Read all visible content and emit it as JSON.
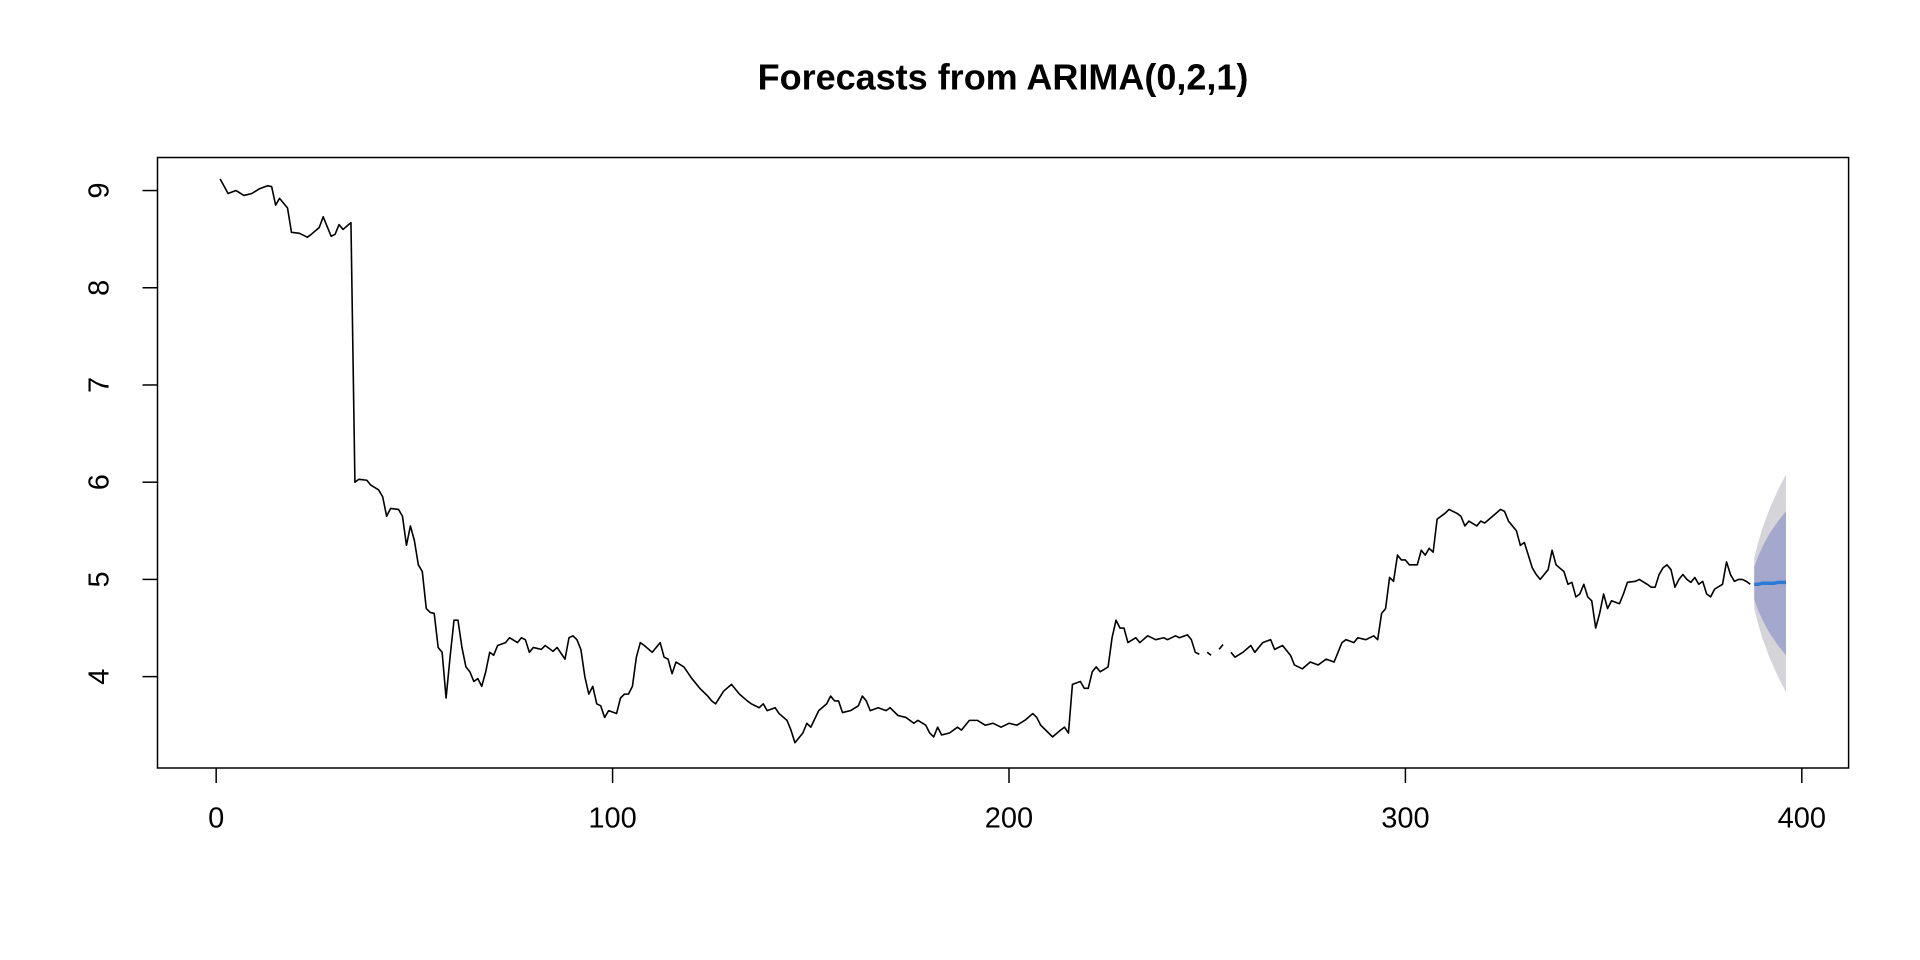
{
  "chart_data": {
    "type": "line",
    "title": "Forecasts from ARIMA(0,2,1)",
    "x": [
      1,
      3,
      5,
      7,
      9,
      11,
      13,
      14,
      15,
      16,
      18,
      19,
      21,
      23,
      24,
      26,
      27,
      29,
      30,
      31,
      32,
      34,
      35,
      36,
      38,
      39,
      41,
      42,
      43,
      44,
      46,
      47,
      48,
      49,
      50,
      51,
      52,
      53,
      54,
      55,
      56,
      57,
      58,
      59,
      60,
      61,
      62,
      63,
      64,
      65,
      66,
      67,
      68,
      69,
      70,
      71,
      73,
      74,
      76,
      77,
      78,
      79,
      80,
      82,
      83,
      85,
      86,
      88,
      89,
      90,
      91,
      92,
      93,
      94,
      95,
      96,
      97,
      98,
      99,
      101,
      102,
      103,
      104,
      105,
      106,
      107,
      108,
      110,
      112,
      113,
      114,
      115,
      116,
      118,
      120,
      122,
      124,
      125,
      126,
      128,
      130,
      132,
      134,
      135,
      137,
      138,
      139,
      141,
      142,
      144,
      145,
      146,
      148,
      149,
      150,
      152,
      154,
      155,
      156,
      157,
      158,
      160,
      162,
      163,
      164,
      165,
      167,
      169,
      170,
      172,
      174,
      176,
      177,
      179,
      180,
      181,
      182,
      183,
      185,
      187,
      188,
      190,
      192,
      194,
      196,
      198,
      200,
      202,
      204,
      206,
      207,
      208,
      210,
      211,
      213,
      214,
      215,
      216,
      218,
      219,
      220,
      221,
      222,
      223,
      225,
      226,
      227,
      228,
      229,
      230,
      232,
      233,
      235,
      237,
      239,
      240,
      242,
      243,
      245,
      246,
      247,
      248,
      249,
      250,
      251,
      252,
      253,
      254,
      255,
      256,
      257,
      259,
      261,
      262,
      264,
      266,
      267,
      269,
      271,
      272,
      274,
      276,
      278,
      280,
      282,
      284,
      285,
      287,
      288,
      290,
      292,
      293,
      294,
      295,
      296,
      297,
      298,
      299,
      300,
      301,
      303,
      304,
      305,
      306,
      307,
      308,
      310,
      311,
      313,
      314,
      315,
      316,
      318,
      319,
      320,
      322,
      324,
      325,
      326,
      327,
      328,
      329,
      330,
      332,
      333,
      334,
      335,
      336,
      337,
      338,
      340,
      341,
      342,
      343,
      344,
      345,
      346,
      347,
      348,
      349,
      350,
      351,
      352,
      354,
      355,
      356,
      358,
      359,
      361,
      362,
      363,
      364,
      365,
      366,
      367,
      368,
      369,
      370,
      371,
      372,
      373,
      374,
      375,
      376,
      377,
      378,
      380,
      381,
      382,
      383,
      384,
      385,
      386,
      387
    ],
    "series": [
      {
        "color": "#000000",
        "values": [
          9.12,
          8.97,
          9.0,
          8.95,
          8.97,
          9.02,
          9.05,
          9.04,
          8.85,
          8.92,
          8.82,
          8.57,
          8.56,
          8.52,
          8.55,
          8.62,
          8.73,
          8.53,
          8.55,
          8.65,
          8.6,
          8.67,
          6.0,
          6.03,
          6.02,
          5.97,
          5.92,
          5.85,
          5.65,
          5.73,
          5.72,
          5.65,
          5.35,
          5.55,
          5.4,
          5.15,
          5.08,
          4.7,
          4.66,
          4.65,
          4.3,
          4.25,
          3.78,
          4.2,
          4.58,
          4.58,
          4.3,
          4.1,
          4.05,
          3.95,
          3.98,
          3.9,
          4.05,
          4.25,
          4.22,
          4.32,
          4.35,
          4.4,
          4.35,
          4.4,
          4.38,
          4.25,
          4.3,
          4.28,
          4.32,
          4.26,
          4.3,
          4.18,
          4.4,
          4.42,
          4.38,
          4.28,
          4.0,
          3.82,
          3.9,
          3.72,
          3.7,
          3.58,
          3.65,
          3.62,
          3.78,
          3.82,
          3.82,
          3.9,
          4.2,
          4.35,
          4.32,
          4.25,
          4.35,
          4.2,
          4.18,
          4.03,
          4.15,
          4.1,
          3.98,
          3.88,
          3.8,
          3.75,
          3.72,
          3.85,
          3.92,
          3.82,
          3.75,
          3.72,
          3.68,
          3.72,
          3.65,
          3.68,
          3.62,
          3.55,
          3.45,
          3.32,
          3.42,
          3.52,
          3.48,
          3.65,
          3.72,
          3.8,
          3.75,
          3.75,
          3.63,
          3.65,
          3.7,
          3.8,
          3.75,
          3.65,
          3.68,
          3.65,
          3.68,
          3.6,
          3.58,
          3.52,
          3.55,
          3.5,
          3.42,
          3.38,
          3.48,
          3.4,
          3.42,
          3.48,
          3.45,
          3.55,
          3.55,
          3.5,
          3.52,
          3.48,
          3.52,
          3.5,
          3.55,
          3.62,
          3.58,
          3.5,
          3.42,
          3.38,
          3.45,
          3.48,
          3.42,
          3.92,
          3.95,
          3.88,
          3.88,
          4.05,
          4.1,
          4.05,
          4.1,
          4.4,
          4.58,
          4.5,
          4.5,
          4.35,
          4.4,
          4.35,
          4.42,
          4.38,
          4.4,
          4.38,
          4.42,
          4.4,
          4.43,
          4.38,
          4.25,
          4.23,
          null,
          4.25,
          4.22,
          null,
          4.28,
          4.33,
          null,
          4.25,
          4.2,
          4.25,
          4.32,
          4.25,
          4.35,
          4.38,
          4.28,
          4.32,
          4.22,
          4.12,
          4.08,
          4.15,
          4.12,
          4.18,
          4.15,
          4.35,
          4.38,
          4.35,
          4.4,
          4.38,
          4.42,
          4.38,
          4.65,
          4.7,
          5.02,
          4.98,
          5.25,
          5.2,
          5.2,
          5.15,
          5.15,
          5.3,
          5.25,
          5.32,
          5.28,
          5.62,
          5.68,
          5.72,
          5.68,
          5.65,
          5.55,
          5.6,
          5.55,
          5.6,
          5.58,
          5.65,
          5.72,
          5.7,
          5.6,
          5.55,
          5.5,
          5.35,
          5.38,
          5.12,
          5.05,
          5.0,
          5.05,
          5.1,
          5.3,
          5.15,
          5.08,
          4.95,
          4.97,
          4.82,
          4.85,
          4.95,
          4.82,
          4.78,
          4.5,
          4.65,
          4.85,
          4.7,
          4.78,
          4.75,
          4.85,
          4.97,
          4.98,
          5.0,
          4.95,
          4.92,
          4.92,
          5.05,
          5.12,
          5.15,
          5.1,
          4.92,
          5.0,
          5.05,
          5.0,
          4.97,
          5.02,
          4.95,
          4.98,
          4.85,
          4.82,
          4.9,
          4.95,
          5.18,
          5.05,
          4.98,
          5.0,
          5.0,
          4.98,
          4.95
        ]
      }
    ],
    "forecast": {
      "x": [
        388,
        389,
        390,
        391,
        392,
        393,
        394,
        395,
        396
      ],
      "color": "#2b7bd6",
      "mean": [
        4.95,
        4.95,
        4.96,
        4.96,
        4.96,
        4.96,
        4.97,
        4.97,
        4.97
      ],
      "intervals": [
        {
          "color": "#d4d4d9",
          "lower": [
            4.7,
            4.54,
            4.4,
            4.29,
            4.18,
            4.09,
            4.0,
            3.92,
            3.84
          ],
          "upper": [
            5.22,
            5.38,
            5.52,
            5.63,
            5.74,
            5.83,
            5.92,
            6.0,
            6.08
          ]
        },
        {
          "color": "#a4a8cd",
          "lower": [
            4.79,
            4.68,
            4.59,
            4.51,
            4.44,
            4.38,
            4.32,
            4.27,
            4.22
          ],
          "upper": [
            5.13,
            5.24,
            5.33,
            5.41,
            5.48,
            5.54,
            5.6,
            5.65,
            5.7
          ]
        }
      ]
    },
    "xlim": [
      -14.8,
      411.8
    ],
    "ylim": [
      3.06,
      9.34
    ],
    "xticks": [
      0,
      100,
      200,
      300,
      400
    ],
    "yticks": [
      4,
      5,
      6,
      7,
      8,
      9
    ]
  }
}
